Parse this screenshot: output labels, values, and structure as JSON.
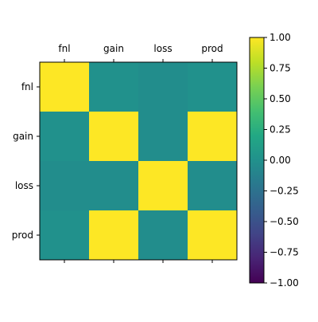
{
  "chart_data": {
    "type": "heatmap",
    "x_categories": [
      "fnl",
      "gain",
      "loss",
      "prod"
    ],
    "y_categories": [
      "fnl",
      "gain",
      "loss",
      "prod"
    ],
    "values": [
      [
        1.0,
        0.0,
        -0.03,
        0.0
      ],
      [
        0.0,
        1.0,
        -0.03,
        1.0
      ],
      [
        -0.03,
        -0.03,
        1.0,
        -0.03
      ],
      [
        0.0,
        1.0,
        -0.03,
        1.0
      ]
    ],
    "colorbar": {
      "vmin": -1.0,
      "vmax": 1.0,
      "colormap": "viridis",
      "ticks": [
        1.0,
        0.75,
        0.5,
        0.25,
        0.0,
        -0.25,
        -0.5,
        -0.75,
        -1.0
      ],
      "tick_labels": [
        "1.00",
        "0.75",
        "0.50",
        "0.25",
        "0.00",
        "−0.25",
        "−0.50",
        "−0.75",
        "−1.00"
      ]
    },
    "x_tick_position": "top",
    "grid": false
  }
}
